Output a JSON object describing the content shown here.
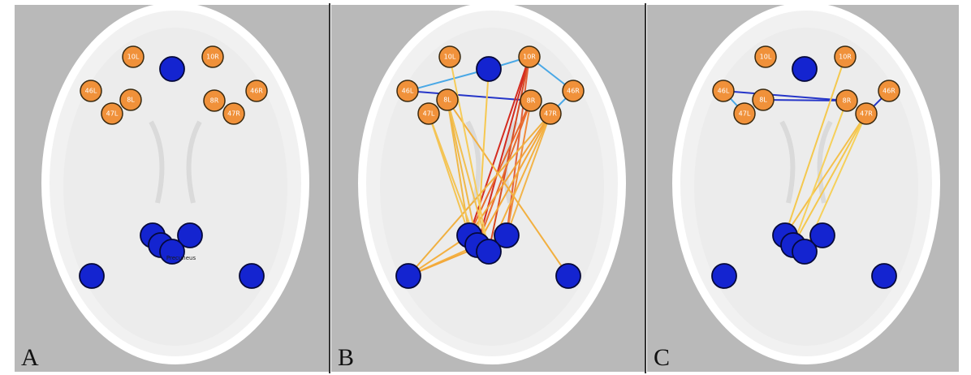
{
  "figure": {
    "panels": [
      {
        "letter": "A",
        "edges": []
      },
      {
        "letter": "B",
        "edges": [
          {
            "from": "46L",
            "to": "mPFC",
            "color": "#49a8e6"
          },
          {
            "from": "mPFC",
            "to": "10R",
            "color": "#49a8e6"
          },
          {
            "from": "10R",
            "to": "46R",
            "color": "#49a8e6"
          },
          {
            "from": "46R",
            "to": "47R",
            "color": "#49a8e6"
          },
          {
            "from": "46L",
            "to": "8R",
            "color": "#2535c8"
          },
          {
            "from": "10R",
            "to": "PCC1",
            "color": "#d42c20"
          },
          {
            "from": "10R",
            "to": "PCC2",
            "color": "#d42c20"
          },
          {
            "from": "10R",
            "to": "PCC3",
            "color": "#d84a22"
          },
          {
            "from": "10R",
            "to": "PCC4",
            "color": "#e2603a"
          },
          {
            "from": "8R",
            "to": "PCC1",
            "color": "#e86a2e"
          },
          {
            "from": "8R",
            "to": "PCC2",
            "color": "#e86a2e"
          },
          {
            "from": "8R",
            "to": "PCC4",
            "color": "#f08a3a"
          },
          {
            "from": "47R",
            "to": "PCC1",
            "color": "#f2a23a"
          },
          {
            "from": "47R",
            "to": "PCC2",
            "color": "#f4a83a"
          },
          {
            "from": "47R",
            "to": "PCC3",
            "color": "#f4b040"
          },
          {
            "from": "47R",
            "to": "PCC4",
            "color": "#f2b44a"
          },
          {
            "from": "47R",
            "to": "LPL",
            "color": "#f0b040"
          },
          {
            "from": "8L",
            "to": "PCC1",
            "color": "#f0b848"
          },
          {
            "from": "8L",
            "to": "PCC2",
            "color": "#f0b848"
          },
          {
            "from": "8L",
            "to": "PCC3",
            "color": "#f2c050"
          },
          {
            "from": "8L",
            "to": "RPL",
            "color": "#f2b040"
          },
          {
            "from": "47L",
            "to": "PCC1",
            "color": "#f4c454"
          },
          {
            "from": "47L",
            "to": "PCC2",
            "color": "#f4c454"
          },
          {
            "from": "10L",
            "to": "PCC3",
            "color": "#f6cc5a"
          },
          {
            "from": "mPFC",
            "to": "PCC2",
            "color": "#f6c850"
          },
          {
            "from": "LPL",
            "to": "PCC1",
            "color": "#f4b040"
          },
          {
            "from": "LPL",
            "to": "PCC2",
            "color": "#f4b040"
          },
          {
            "from": "LPL",
            "to": "PCC4",
            "color": "#f2a83a"
          }
        ]
      },
      {
        "letter": "C",
        "edges": [
          {
            "from": "46L",
            "to": "47L",
            "color": "#49a8e6"
          },
          {
            "from": "46L",
            "to": "8R",
            "color": "#2535c8"
          },
          {
            "from": "8L",
            "to": "8R",
            "color": "#2535c8"
          },
          {
            "from": "46R",
            "to": "47R",
            "color": "#2535c8"
          },
          {
            "from": "10R",
            "to": "PCC1",
            "color": "#f4c84e"
          },
          {
            "from": "47R",
            "to": "PCC1",
            "color": "#f4c04a"
          },
          {
            "from": "47R",
            "to": "PCC2",
            "color": "#f4c84e"
          },
          {
            "from": "47R",
            "to": "PCC3",
            "color": "#f6d05a"
          },
          {
            "from": "8R",
            "to": "PCC2",
            "color": "#f6d05a"
          }
        ]
      }
    ],
    "nodes": [
      {
        "id": "10L",
        "label": "10L",
        "kind": "prefrontal"
      },
      {
        "id": "10R",
        "label": "10R",
        "kind": "prefrontal"
      },
      {
        "id": "mPFC",
        "label": "",
        "kind": "dmn"
      },
      {
        "id": "46L",
        "label": "46L",
        "kind": "prefrontal"
      },
      {
        "id": "46R",
        "label": "46R",
        "kind": "prefrontal"
      },
      {
        "id": "8L",
        "label": "8L",
        "kind": "prefrontal"
      },
      {
        "id": "8R",
        "label": "8R",
        "kind": "prefrontal"
      },
      {
        "id": "47L",
        "label": "47L",
        "kind": "prefrontal"
      },
      {
        "id": "47R",
        "label": "47R",
        "kind": "prefrontal"
      },
      {
        "id": "PCC1",
        "label": "",
        "kind": "dmn"
      },
      {
        "id": "PCC4",
        "label": "",
        "kind": "dmn"
      },
      {
        "id": "PCC2",
        "label": "",
        "kind": "dmn"
      },
      {
        "id": "PCC3",
        "label": "",
        "kind": "dmn"
      },
      {
        "id": "LPL",
        "label": "",
        "kind": "dmn"
      },
      {
        "id": "RPL",
        "label": "",
        "kind": "dmn"
      }
    ],
    "node_colors": {
      "prefrontal": "#f0913a",
      "dmn": "#1424d0"
    },
    "stray_label_panel_a": "Precuneus"
  }
}
